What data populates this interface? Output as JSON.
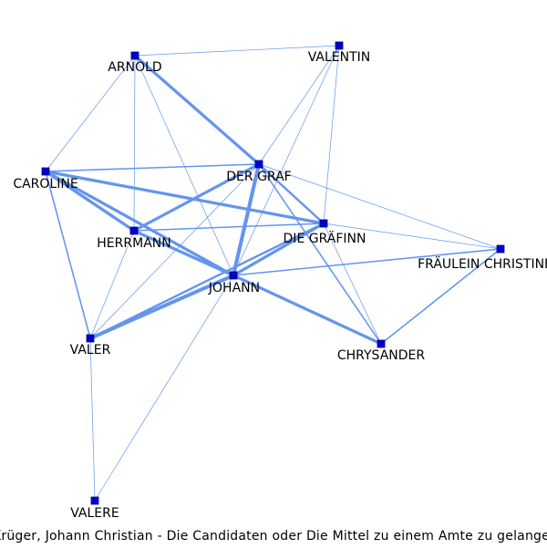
{
  "caption": "Krüger, Johann Christian - Die Candidaten oder Die Mittel zu einem Amte zu gelangen",
  "colors": {
    "edge": "#6495ED",
    "node": "#0000CD",
    "node_border": "#000080"
  },
  "nodes": [
    {
      "id": "ARNOLD",
      "label": "ARNOLD"
    },
    {
      "id": "VALENTIN",
      "label": "VALENTIN"
    },
    {
      "id": "DER_GRAF",
      "label": "DER GRAF"
    },
    {
      "id": "CAROLINE",
      "label": "CAROLINE"
    },
    {
      "id": "DIE_GRAEFINN",
      "label": "DIE GRÄFINN"
    },
    {
      "id": "HERRMANN",
      "label": "HERRMANN"
    },
    {
      "id": "FRAEULEIN_CHRISTINE",
      "label": "FRÄULEIN CHRISTINE"
    },
    {
      "id": "JOHANN",
      "label": "JOHANN"
    },
    {
      "id": "VALER",
      "label": "VALER"
    },
    {
      "id": "CHRYSANDER",
      "label": "CHRYSANDER"
    },
    {
      "id": "VALERE",
      "label": "VALERE"
    }
  ],
  "edges": [
    {
      "source": "ARNOLD",
      "target": "VALENTIN",
      "weight": 1
    },
    {
      "source": "ARNOLD",
      "target": "DER_GRAF",
      "weight": 4
    },
    {
      "source": "ARNOLD",
      "target": "CAROLINE",
      "weight": 1
    },
    {
      "source": "ARNOLD",
      "target": "HERRMANN",
      "weight": 1
    },
    {
      "source": "ARNOLD",
      "target": "JOHANN",
      "weight": 1
    },
    {
      "source": "VALENTIN",
      "target": "DER_GRAF",
      "weight": 1
    },
    {
      "source": "VALENTIN",
      "target": "DIE_GRAEFINN",
      "weight": 1
    },
    {
      "source": "VALENTIN",
      "target": "JOHANN",
      "weight": 1
    },
    {
      "source": "DER_GRAF",
      "target": "CAROLINE",
      "weight": 2
    },
    {
      "source": "DER_GRAF",
      "target": "HERRMANN",
      "weight": 4
    },
    {
      "source": "DER_GRAF",
      "target": "JOHANN",
      "weight": 5
    },
    {
      "source": "DER_GRAF",
      "target": "DIE_GRAEFINN",
      "weight": 3
    },
    {
      "source": "DER_GRAF",
      "target": "VALER",
      "weight": 1
    },
    {
      "source": "DER_GRAF",
      "target": "FRAEULEIN_CHRISTINE",
      "weight": 1
    },
    {
      "source": "DER_GRAF",
      "target": "CHRYSANDER",
      "weight": 2
    },
    {
      "source": "CAROLINE",
      "target": "DIE_GRAEFINN",
      "weight": 4
    },
    {
      "source": "CAROLINE",
      "target": "HERRMANN",
      "weight": 4
    },
    {
      "source": "CAROLINE",
      "target": "JOHANN",
      "weight": 4
    },
    {
      "source": "CAROLINE",
      "target": "VALER",
      "weight": 2
    },
    {
      "source": "HERRMANN",
      "target": "DIE_GRAEFINN",
      "weight": 2
    },
    {
      "source": "HERRMANN",
      "target": "JOHANN",
      "weight": 4
    },
    {
      "source": "HERRMANN",
      "target": "VALER",
      "weight": 1
    },
    {
      "source": "DIE_GRAEFINN",
      "target": "JOHANN",
      "weight": 4
    },
    {
      "source": "DIE_GRAEFINN",
      "target": "VALER",
      "weight": 3
    },
    {
      "source": "DIE_GRAEFINN",
      "target": "FRAEULEIN_CHRISTINE",
      "weight": 1
    },
    {
      "source": "DIE_GRAEFINN",
      "target": "CHRYSANDER",
      "weight": 1
    },
    {
      "source": "JOHANN",
      "target": "VALER",
      "weight": 5
    },
    {
      "source": "JOHANN",
      "target": "CHRYSANDER",
      "weight": 4
    },
    {
      "source": "JOHANN",
      "target": "FRAEULEIN_CHRISTINE",
      "weight": 2
    },
    {
      "source": "JOHANN",
      "target": "VALERE",
      "weight": 1
    },
    {
      "source": "CHRYSANDER",
      "target": "FRAEULEIN_CHRISTINE",
      "weight": 2
    },
    {
      "source": "VALER",
      "target": "VALERE",
      "weight": 1
    }
  ]
}
